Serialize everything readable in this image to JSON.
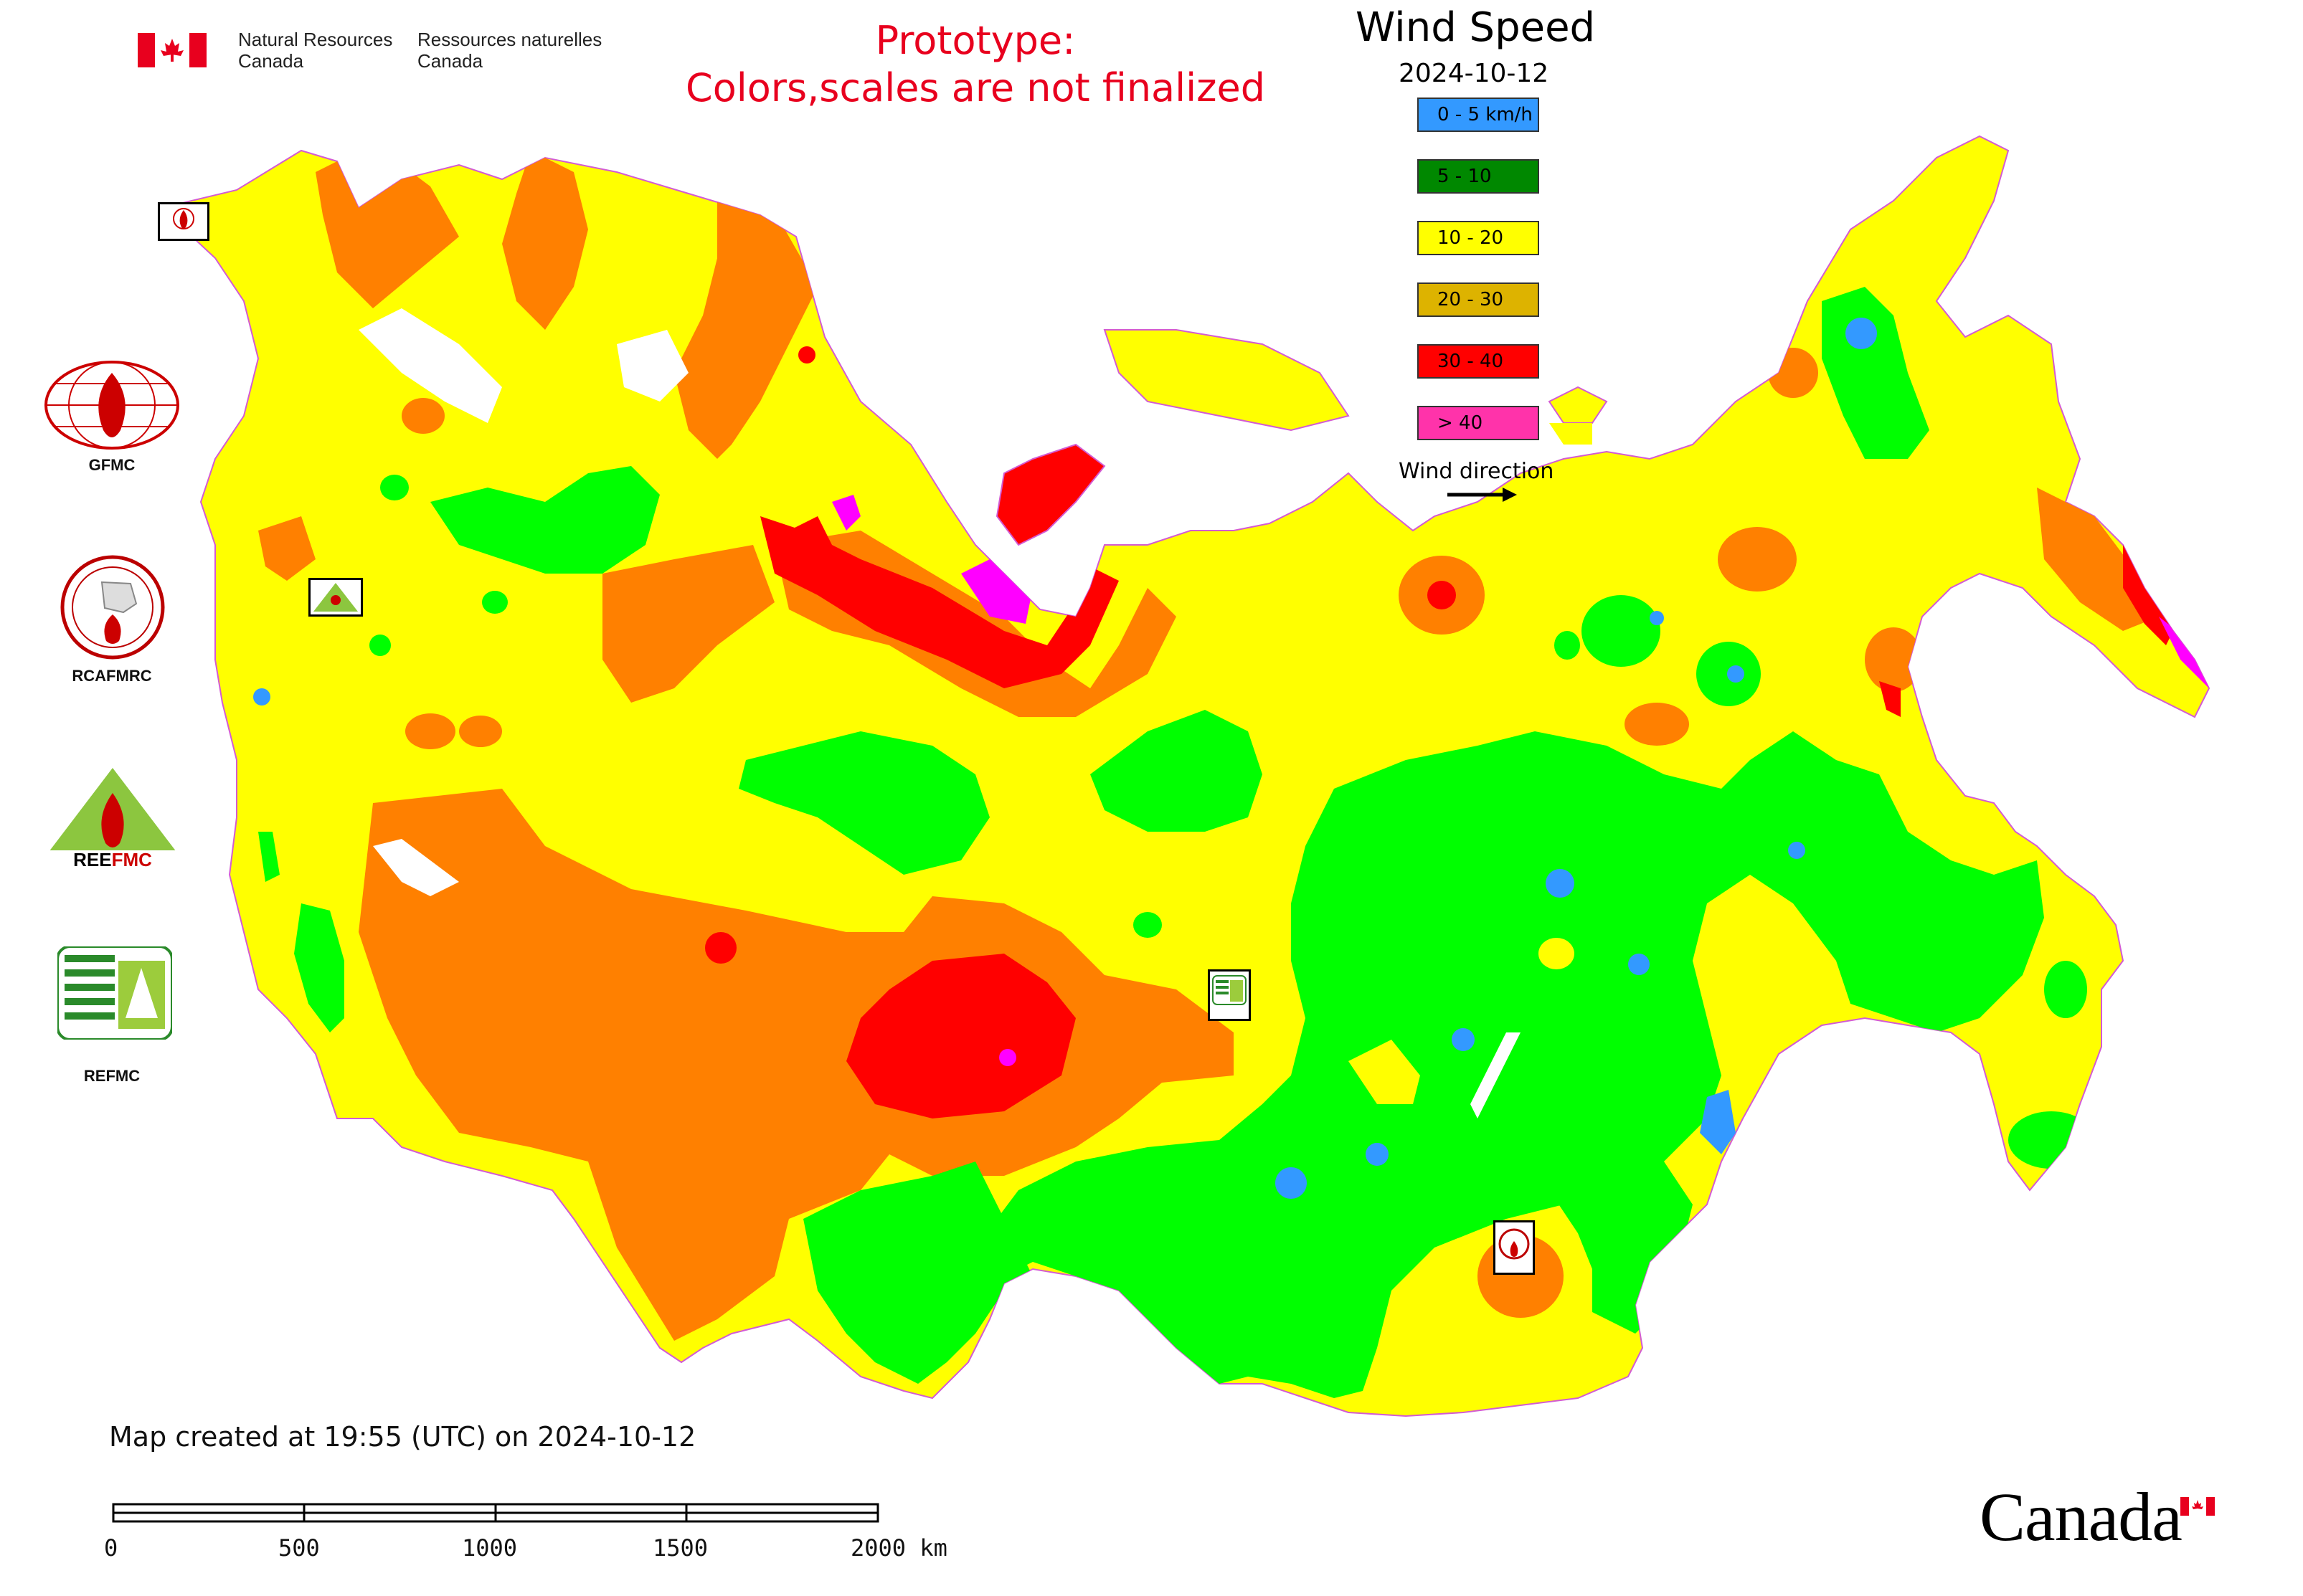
{
  "header": {
    "agency_en": [
      "Natural Resources",
      "Canada"
    ],
    "agency_fr": [
      "Ressources naturelles",
      "Canada"
    ],
    "prototype_line1": "Prototype:",
    "prototype_line2": "Colors,scales are not finalized"
  },
  "map_title": "Wind Speed",
  "map_date": "2024-10-12",
  "legend": {
    "items": [
      {
        "label": "0 - 5 km/h",
        "color": "#3399ff"
      },
      {
        "label": "5 - 10",
        "color": "#008800"
      },
      {
        "label": "10 - 20",
        "color": "#ffff00"
      },
      {
        "label": "20 - 30",
        "color": "#ddb300"
      },
      {
        "label": "30 - 40",
        "color": "#ff0000"
      },
      {
        "label": "> 40",
        "color": "#ff33aa"
      }
    ],
    "wind_direction_label": "Wind direction"
  },
  "colors": {
    "calm": "#3399ff",
    "light": "#00ff00",
    "moderate": "#ffff00",
    "fresh": "#ff8000",
    "strong": "#ff0000",
    "gale": "#ff00ff",
    "border": "#d35bd3"
  },
  "logos": [
    {
      "label": "GFMC",
      "icon": "gfmc-logo"
    },
    {
      "label": "RCAFMRC",
      "icon": "rcafmrc-logo"
    },
    {
      "label": "REEFMC",
      "icon": "reefmc-logo"
    },
    {
      "label": "REFMC",
      "icon": "refmc-logo"
    }
  ],
  "footer": {
    "created": "Map created at 19:55 (UTC) on 2024-10-12",
    "scale_labels": [
      "0",
      "500",
      "1000",
      "1500",
      "2000 km"
    ],
    "wordmark": "Canada"
  }
}
